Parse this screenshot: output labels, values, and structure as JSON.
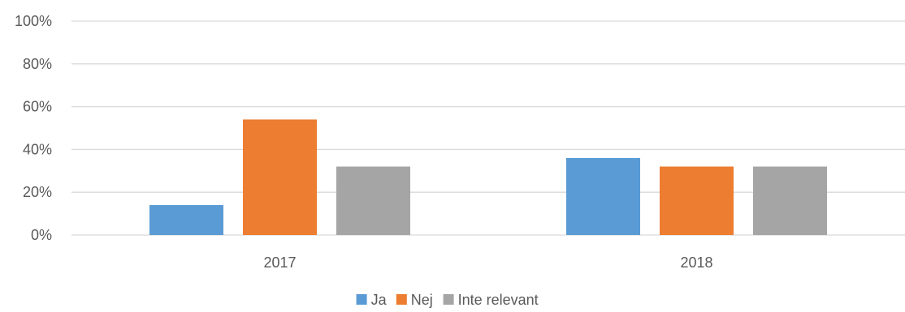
{
  "chart_data": {
    "type": "bar",
    "categories": [
      "2017",
      "2018"
    ],
    "series": [
      {
        "name": "Ja",
        "values": [
          14,
          36
        ],
        "color": "#5B9BD5"
      },
      {
        "name": "Nej",
        "values": [
          54,
          32
        ],
        "color": "#ED7D31"
      },
      {
        "name": "Inte relevant",
        "values": [
          32,
          32
        ],
        "color": "#A5A5A5"
      }
    ],
    "ylim": [
      0,
      100
    ],
    "yticks": [
      0,
      20,
      40,
      60,
      80,
      100
    ],
    "ytick_labels": [
      "0%",
      "20%",
      "40%",
      "60%",
      "80%",
      "100%"
    ],
    "grid": true,
    "legend_position": "bottom",
    "gridline_color": "#D9D9D9"
  }
}
